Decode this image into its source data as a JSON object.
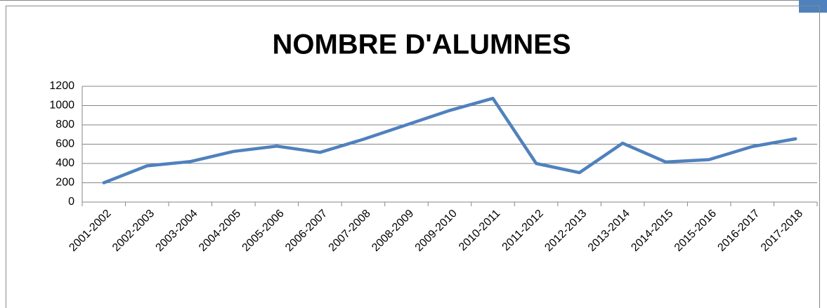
{
  "chart_data": {
    "type": "line",
    "title": "NOMBRE D'ALUMNES",
    "categories": [
      "2001-2002",
      "2002-2003",
      "2003-2004",
      "2004-2005",
      "2005-2006",
      "2006-2007",
      "2007-2008",
      "2008-2009",
      "2009-2010",
      "2010-2011",
      "2011-2012",
      "2012-2013",
      "2013-2014",
      "2014-2015",
      "2015-2016",
      "2016-2017",
      "2017-2018"
    ],
    "values": [
      200,
      375,
      420,
      525,
      580,
      515,
      650,
      800,
      950,
      1075,
      400,
      305,
      610,
      415,
      440,
      575,
      655
    ],
    "color": "#4f81bd",
    "ylim": [
      0,
      1200
    ],
    "yticks": [
      0,
      200,
      400,
      600,
      800,
      1000,
      1200
    ],
    "grid": true
  }
}
